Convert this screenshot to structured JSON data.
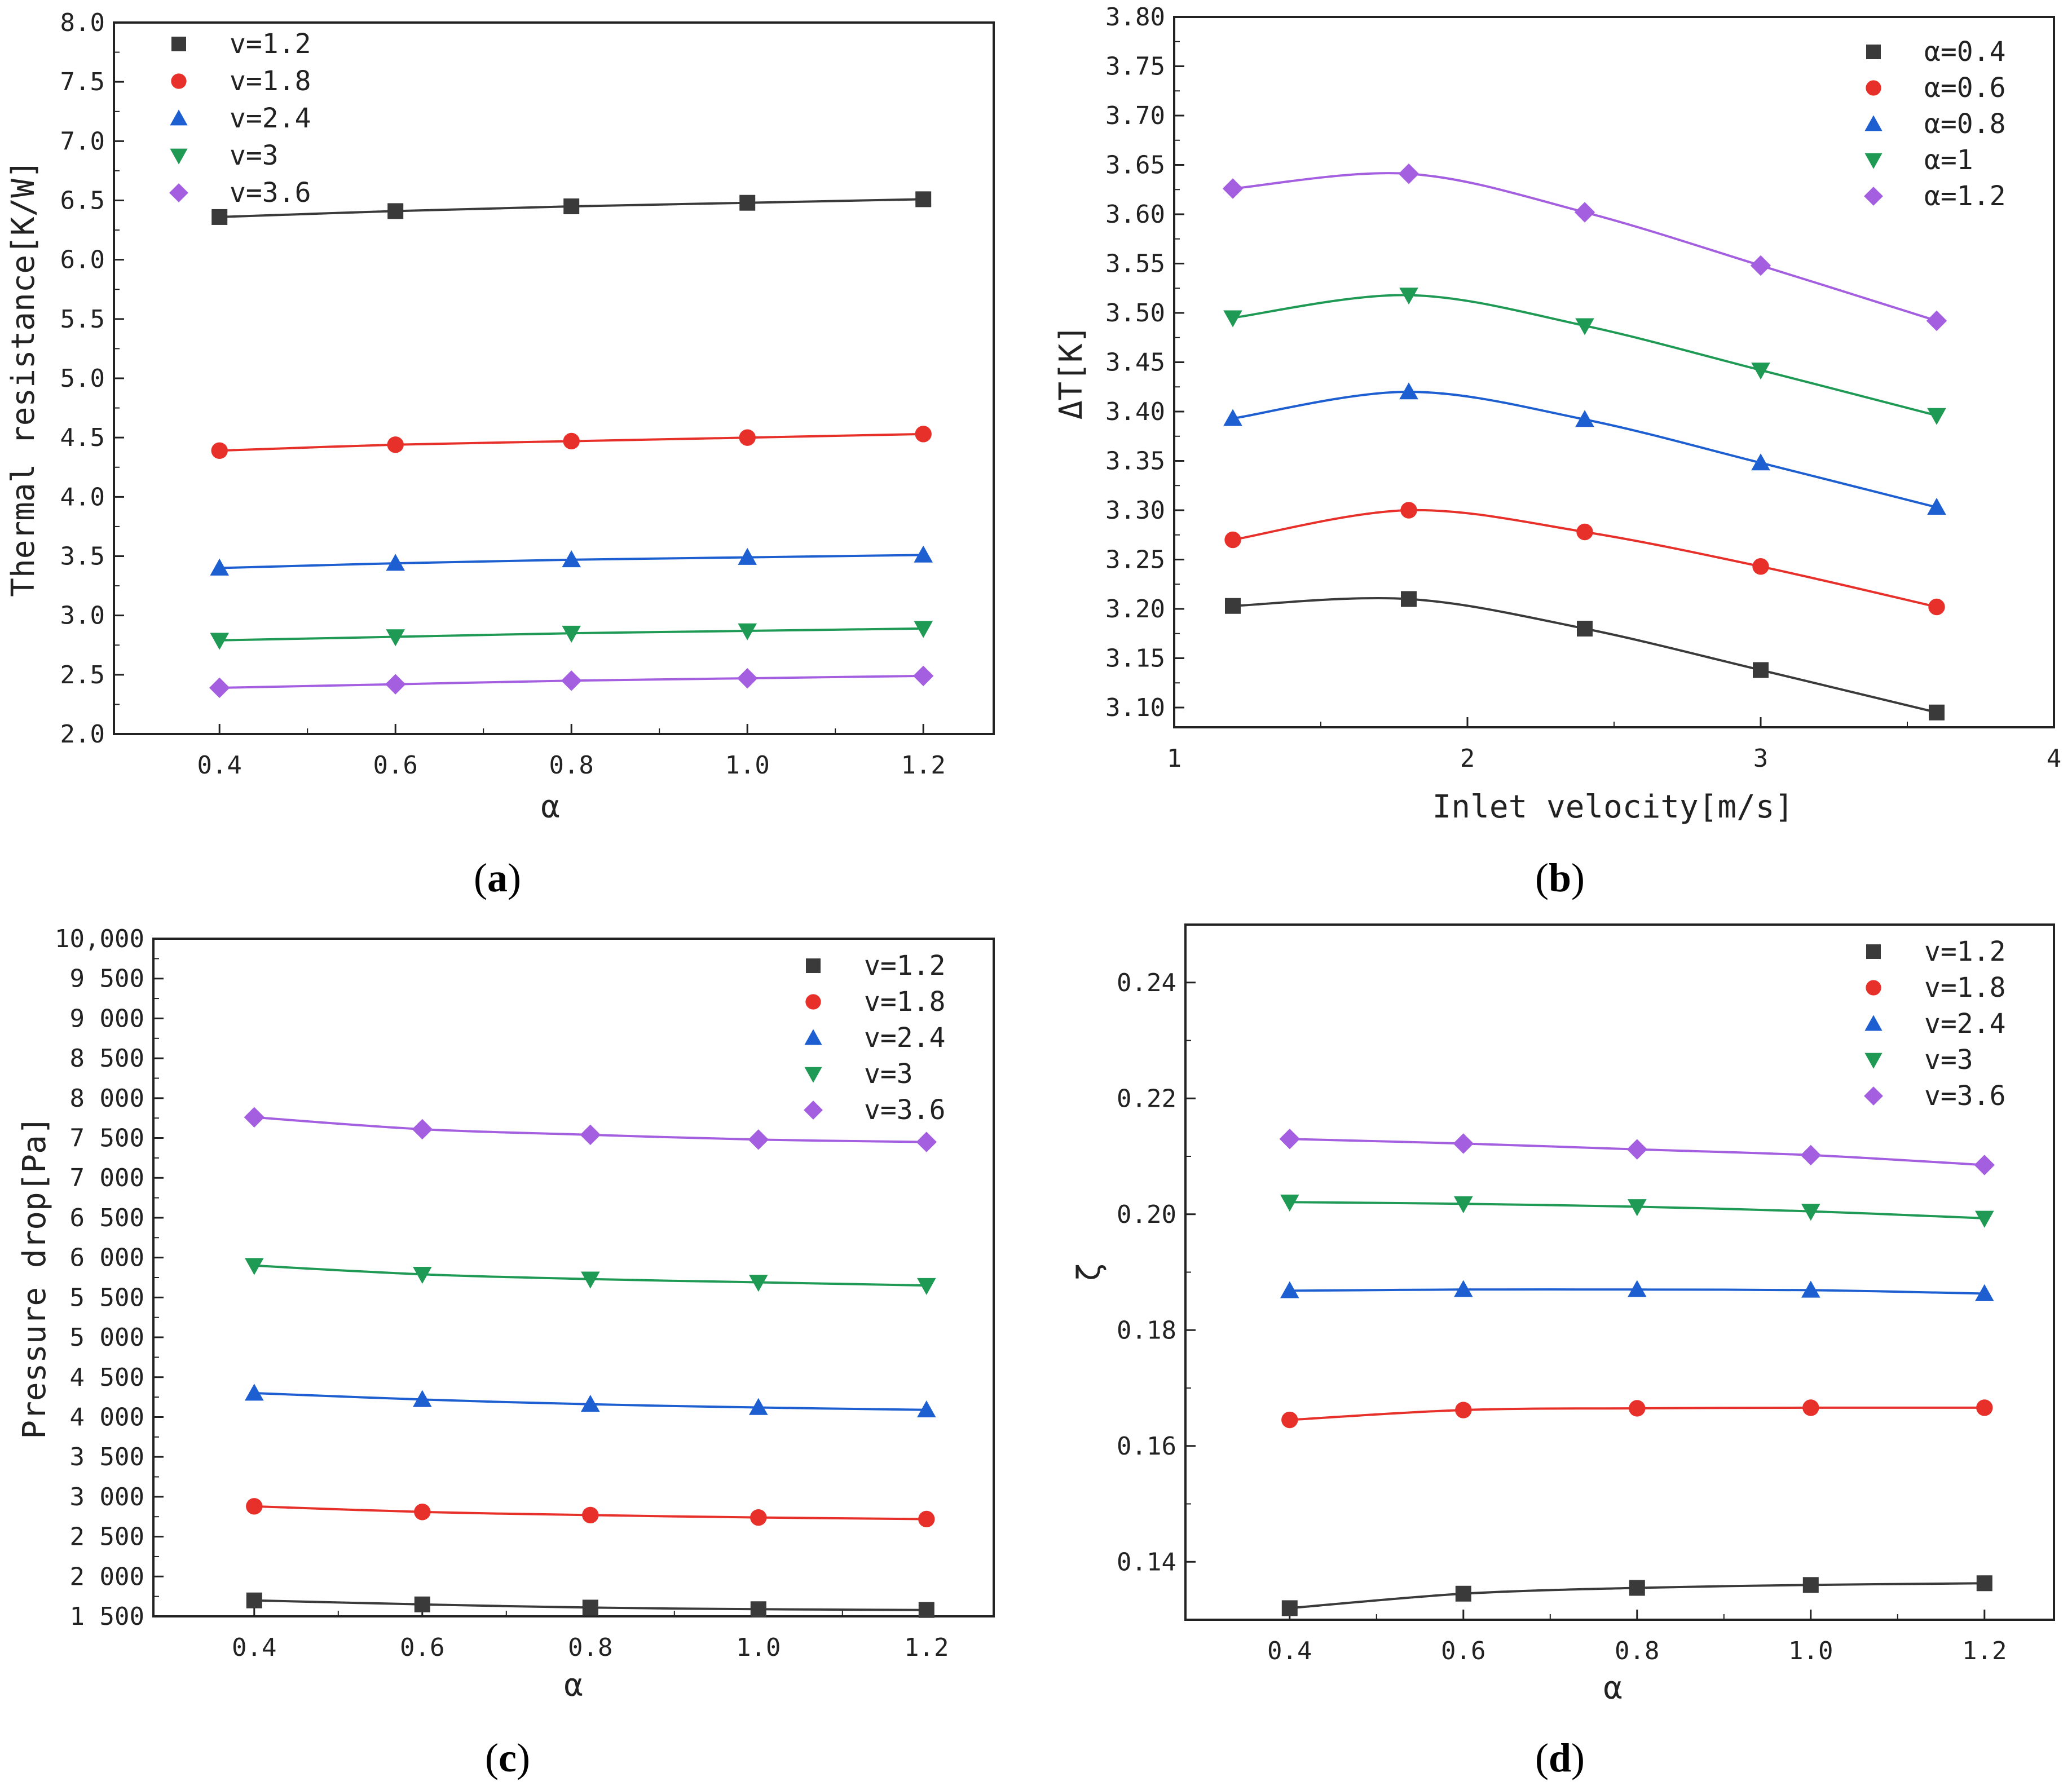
{
  "colors": {
    "s1": "#3a3a3a",
    "s2": "#e8302b",
    "s3": "#1d5fd1",
    "s4": "#1f9a55",
    "s5": "#a45ee0"
  },
  "chart_data": [
    {
      "id": "a",
      "type": "line",
      "caption_letter": "a",
      "xlabel": "α",
      "ylabel": "Thermal resistance[K/W]",
      "xlim": [
        0.28,
        1.28
      ],
      "ylim": [
        2.0,
        8.0
      ],
      "xticks": [
        0.4,
        0.6,
        0.8,
        1.0,
        1.2
      ],
      "xticklabels": [
        "0.4",
        "0.6",
        "0.8",
        "1.0",
        "1.2"
      ],
      "yticks": [
        2.0,
        2.5,
        3.0,
        3.5,
        4.0,
        4.5,
        5.0,
        5.5,
        6.0,
        6.5,
        7.0,
        7.5,
        8.0
      ],
      "yticklabels": [
        "2.0",
        "2.5",
        "3.0",
        "3.5",
        "4.0",
        "4.5",
        "5.0",
        "5.5",
        "6.0",
        "6.5",
        "7.0",
        "7.5",
        "8.0"
      ],
      "legend_position": "top-left",
      "x": [
        0.4,
        0.6,
        0.8,
        1.0,
        1.2
      ],
      "series": [
        {
          "name": "v=1.2",
          "marker": "square",
          "color": "#3a3a3a",
          "values": [
            6.36,
            6.41,
            6.45,
            6.48,
            6.51
          ]
        },
        {
          "name": "v=1.8",
          "marker": "circle",
          "color": "#e8302b",
          "values": [
            4.39,
            4.44,
            4.47,
            4.5,
            4.53
          ]
        },
        {
          "name": "v=2.4",
          "marker": "triangle-up",
          "color": "#1d5fd1",
          "values": [
            3.4,
            3.44,
            3.47,
            3.49,
            3.51
          ]
        },
        {
          "name": "v=3",
          "marker": "triangle-down",
          "color": "#1f9a55",
          "values": [
            2.79,
            2.82,
            2.85,
            2.87,
            2.89
          ]
        },
        {
          "name": "v=3.6",
          "marker": "diamond",
          "color": "#a45ee0",
          "values": [
            2.39,
            2.42,
            2.45,
            2.47,
            2.49
          ]
        }
      ]
    },
    {
      "id": "b",
      "type": "line",
      "caption_letter": "b",
      "xlabel": "Inlet velocity[m/s]",
      "ylabel": "ΔT[K]",
      "xlim": [
        1,
        4
      ],
      "ylim": [
        3.08,
        3.8
      ],
      "xticks": [
        1,
        2,
        3,
        4
      ],
      "xticklabels": [
        "1",
        "2",
        "3",
        "4"
      ],
      "yticks": [
        3.1,
        3.15,
        3.2,
        3.25,
        3.3,
        3.35,
        3.4,
        3.45,
        3.5,
        3.55,
        3.6,
        3.65,
        3.7,
        3.75,
        3.8
      ],
      "yticklabels": [
        "3.10",
        "3.15",
        "3.20",
        "3.25",
        "3.30",
        "3.35",
        "3.40",
        "3.45",
        "3.50",
        "3.55",
        "3.60",
        "3.65",
        "3.70",
        "3.75",
        "3.80"
      ],
      "legend_position": "top-right",
      "x": [
        1.2,
        1.8,
        2.4,
        3.0,
        3.6
      ],
      "series": [
        {
          "name": "α=0.4",
          "marker": "square",
          "color": "#3a3a3a",
          "values": [
            3.203,
            3.21,
            3.18,
            3.138,
            3.095
          ]
        },
        {
          "name": "α=0.6",
          "marker": "circle",
          "color": "#e8302b",
          "values": [
            3.27,
            3.3,
            3.278,
            3.243,
            3.202
          ]
        },
        {
          "name": "α=0.8",
          "marker": "triangle-up",
          "color": "#1d5fd1",
          "values": [
            3.393,
            3.42,
            3.392,
            3.348,
            3.303
          ]
        },
        {
          "name": "α=1",
          "marker": "triangle-down",
          "color": "#1f9a55",
          "values": [
            3.495,
            3.518,
            3.487,
            3.442,
            3.396
          ]
        },
        {
          "name": "α=1.2",
          "marker": "diamond",
          "color": "#a45ee0",
          "values": [
            3.626,
            3.641,
            3.602,
            3.548,
            3.492
          ]
        }
      ]
    },
    {
      "id": "c",
      "type": "line",
      "caption_letter": "c",
      "xlabel": "α",
      "ylabel": "Pressure drop[Pa]",
      "xlim": [
        0.28,
        1.28
      ],
      "ylim": [
        1500,
        10000
      ],
      "xticks": [
        0.4,
        0.6,
        0.8,
        1.0,
        1.2
      ],
      "xticklabels": [
        "0.4",
        "0.6",
        "0.8",
        "1.0",
        "1.2"
      ],
      "yticks": [
        1500,
        2000,
        2500,
        3000,
        3500,
        4000,
        4500,
        5000,
        5500,
        6000,
        6500,
        7000,
        7500,
        8000,
        8500,
        9000,
        9500,
        10000
      ],
      "yticklabels": [
        "1 500",
        "2 000",
        "2 500",
        "3 000",
        "3 500",
        "4 000",
        "4 500",
        "5 000",
        "5 500",
        "6 000",
        "6 500",
        "7 000",
        "7 500",
        "8 000",
        "8 500",
        "9 000",
        "9 500",
        "10,000"
      ],
      "legend_position": "top-right",
      "x": [
        0.4,
        0.6,
        0.8,
        1.0,
        1.2
      ],
      "series": [
        {
          "name": "v=1.2",
          "marker": "square",
          "color": "#3a3a3a",
          "values": [
            1700,
            1650,
            1610,
            1590,
            1580
          ]
        },
        {
          "name": "v=1.8",
          "marker": "circle",
          "color": "#e8302b",
          "values": [
            2880,
            2810,
            2770,
            2740,
            2720
          ]
        },
        {
          "name": "v=2.4",
          "marker": "triangle-up",
          "color": "#1d5fd1",
          "values": [
            4300,
            4220,
            4160,
            4120,
            4090
          ]
        },
        {
          "name": "v=3",
          "marker": "triangle-down",
          "color": "#1f9a55",
          "values": [
            5900,
            5790,
            5730,
            5690,
            5650
          ]
        },
        {
          "name": "v=3.6",
          "marker": "diamond",
          "color": "#a45ee0",
          "values": [
            7760,
            7610,
            7540,
            7480,
            7450
          ]
        }
      ]
    },
    {
      "id": "d",
      "type": "line",
      "caption_letter": "d",
      "xlabel": "α",
      "ylabel": "ζ",
      "xlim": [
        0.28,
        1.28
      ],
      "ylim": [
        0.13,
        0.25
      ],
      "xticks": [
        0.4,
        0.6,
        0.8,
        1.0,
        1.2
      ],
      "xticklabels": [
        "0.4",
        "0.6",
        "0.8",
        "1.0",
        "1.2"
      ],
      "yticks": [
        0.14,
        0.16,
        0.18,
        0.2,
        0.22,
        0.24
      ],
      "yticklabels": [
        "0.14",
        "0.16",
        "0.18",
        "0.20",
        "0.22",
        "0.24"
      ],
      "legend_position": "top-right",
      "x": [
        0.4,
        0.6,
        0.8,
        1.0,
        1.2
      ],
      "series": [
        {
          "name": "v=1.2",
          "marker": "square",
          "color": "#3a3a3a",
          "values": [
            0.132,
            0.1345,
            0.1355,
            0.136,
            0.1363
          ]
        },
        {
          "name": "v=1.8",
          "marker": "circle",
          "color": "#e8302b",
          "values": [
            0.1645,
            0.1662,
            0.1665,
            0.1666,
            0.1666
          ]
        },
        {
          "name": "v=2.4",
          "marker": "triangle-up",
          "color": "#1d5fd1",
          "values": [
            0.1868,
            0.187,
            0.187,
            0.1869,
            0.1863
          ]
        },
        {
          "name": "v=3",
          "marker": "triangle-down",
          "color": "#1f9a55",
          "values": [
            0.2021,
            0.2018,
            0.2013,
            0.2005,
            0.1993
          ]
        },
        {
          "name": "v=3.6",
          "marker": "diamond",
          "color": "#a45ee0",
          "values": [
            0.213,
            0.2122,
            0.2112,
            0.2102,
            0.2085
          ]
        }
      ]
    }
  ]
}
